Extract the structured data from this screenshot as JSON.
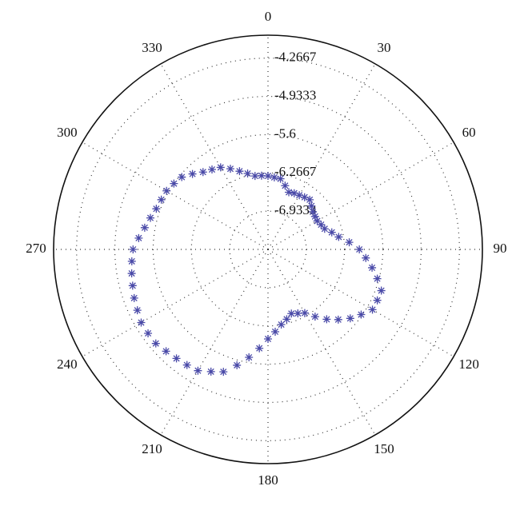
{
  "chart_data": {
    "type": "polar",
    "theta_zero": "top",
    "theta_direction": "clockwise",
    "grid": true,
    "theta": [
      0,
      5,
      10,
      15,
      20,
      25,
      30,
      35,
      40,
      45,
      50,
      55,
      60,
      65,
      70,
      75,
      80,
      85,
      90,
      95,
      100,
      105,
      110,
      115,
      120,
      125,
      130,
      135,
      140,
      145,
      150,
      155,
      160,
      165,
      170,
      175,
      180,
      185,
      190,
      195,
      200,
      205,
      210,
      215,
      220,
      225,
      230,
      235,
      240,
      245,
      250,
      255,
      260,
      265,
      270,
      275,
      280,
      285,
      290,
      295,
      300,
      305,
      310,
      315,
      320,
      325,
      330,
      335,
      340,
      345,
      350,
      355
    ],
    "values": [
      -6.32,
      -6.34,
      -6.35,
      -6.45,
      -6.54,
      -6.52,
      -6.51,
      -6.49,
      -6.47,
      -6.53,
      -6.58,
      -6.6,
      -6.61,
      -6.58,
      -6.55,
      -6.45,
      -6.35,
      -6.18,
      -6.01,
      -5.89,
      -5.76,
      -5.63,
      -5.5,
      -5.5,
      -5.5,
      -5.62,
      -5.73,
      -5.87,
      -6.01,
      -6.17,
      -6.32,
      -6.37,
      -6.41,
      -6.34,
      -6.27,
      -6.16,
      -6.04,
      -5.87,
      -5.69,
      -5.51,
      -5.33,
      -5.25,
      -5.16,
      -5.14,
      -5.12,
      -5.09,
      -5.05,
      -5.05,
      -5.05,
      -5.09,
      -5.12,
      -5.16,
      -5.19,
      -5.22,
      -5.25,
      -5.34,
      -5.42,
      -5.48,
      -5.53,
      -5.55,
      -5.56,
      -5.6,
      -5.64,
      -5.74,
      -5.84,
      -5.9,
      -5.95,
      -6.05,
      -6.15,
      -6.23,
      -6.3,
      -6.31
    ],
    "color": "#4a4aa8",
    "rlim": [
      -7.6,
      -3.8667
    ],
    "rticks": [
      -6.9333,
      -6.2667,
      -5.6,
      -4.9333,
      -4.2667
    ],
    "thetaticks": [
      0,
      30,
      60,
      90,
      120,
      150,
      180,
      210,
      240,
      270,
      300,
      330
    ]
  }
}
